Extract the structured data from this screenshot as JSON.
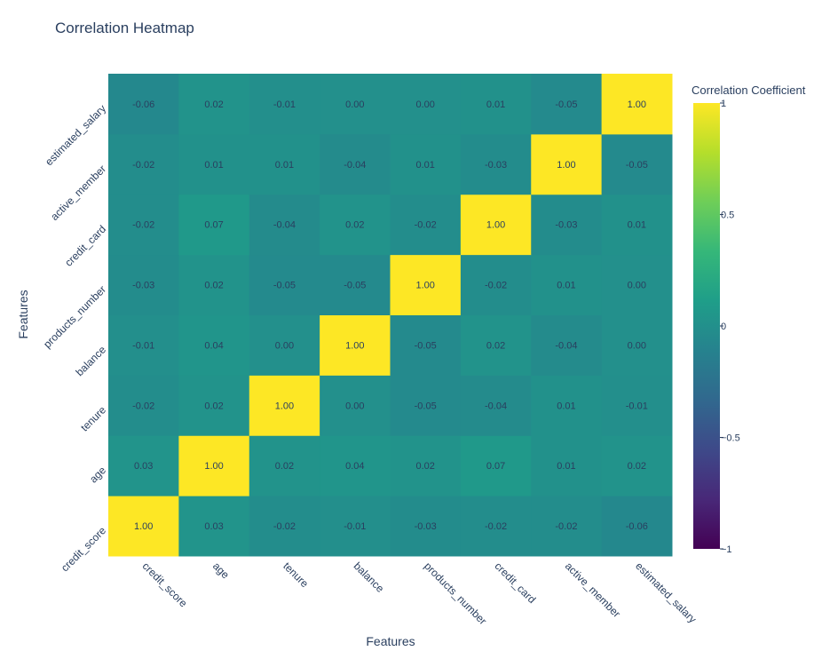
{
  "chart_data": {
    "type": "heatmap",
    "title": "Correlation Heatmap",
    "xlabel": "Features",
    "ylabel": "Features",
    "x": [
      "credit_score",
      "age",
      "tenure",
      "balance",
      "products_number",
      "credit_card",
      "active_member",
      "estimated_salary"
    ],
    "y": [
      "credit_score",
      "age",
      "tenure",
      "balance",
      "products_number",
      "credit_card",
      "active_member",
      "estimated_salary"
    ],
    "z": [
      [
        1.0,
        0.03,
        -0.02,
        -0.01,
        -0.03,
        -0.02,
        -0.02,
        -0.06
      ],
      [
        0.03,
        1.0,
        0.02,
        0.04,
        0.02,
        0.07,
        0.01,
        0.02
      ],
      [
        -0.02,
        0.02,
        1.0,
        0.0,
        -0.05,
        -0.04,
        0.01,
        -0.01
      ],
      [
        -0.01,
        0.04,
        0.0,
        1.0,
        -0.05,
        0.02,
        -0.04,
        0.0
      ],
      [
        -0.03,
        0.02,
        -0.05,
        -0.05,
        1.0,
        -0.02,
        0.01,
        0.0
      ],
      [
        -0.02,
        0.07,
        -0.04,
        0.02,
        -0.02,
        1.0,
        -0.03,
        0.01
      ],
      [
        -0.02,
        0.01,
        0.01,
        -0.04,
        0.01,
        -0.03,
        1.0,
        -0.05
      ],
      [
        -0.06,
        0.02,
        -0.01,
        0.0,
        0.0,
        0.01,
        -0.05,
        1.0
      ]
    ],
    "zrange": [
      -1,
      1
    ],
    "colorscale": "Viridis",
    "colorbar": {
      "title": "Correlation Coefficient",
      "ticks": [
        1,
        0.5,
        0,
        -0.5,
        -1
      ],
      "tick_labels": [
        "1",
        "0.5",
        "0",
        "−0.5",
        "−1"
      ]
    },
    "grid": false
  }
}
